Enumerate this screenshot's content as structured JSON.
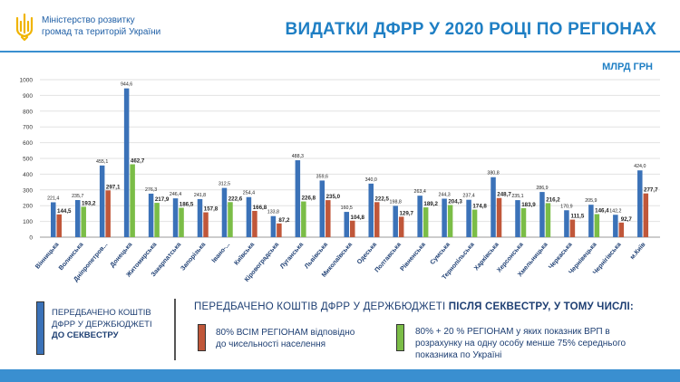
{
  "header": {
    "org_line1": "Міністерство розвитку",
    "org_line2": "громад та територій України",
    "title": "ВИДАТКИ ДФРР У 2020 РОЦІ ПО РЕГІОНАХ",
    "unit": "МЛРД ГРН"
  },
  "colors": {
    "blue": "#3b72b8",
    "orange": "#c0573a",
    "green": "#7bbd47",
    "accent": "#1f7fc4"
  },
  "legend": {
    "before_line1": "ПЕРЕДБАЧЕНО  КОШТІВ",
    "before_line2": "ДФРР У ДЕРЖБЮДЖЕТІ",
    "before_line3": "ДО СЕКВЕСТРУ",
    "after_title_plain": "ПЕРЕДБАЧЕНО  КОШТІВ ДФРР У ДЕРЖБЮДЖЕТІ ",
    "after_title_bold": "ПІСЛЯ СЕКВЕСТРУ, У ТОМУ ЧИСЛІ:",
    "orange_line1": "80% ВСІМ РЕГІОНАМ відповідно",
    "orange_line2": "до чисельності населення",
    "green_line1": "80% + 20 % РЕГІОНАМ у яких показник ВРП в",
    "green_line2": "розрахунку на одну особу менше 75% середнього",
    "green_line3": "показника по Україні"
  },
  "chart_data": {
    "type": "bar",
    "ylim": [
      0,
      1000
    ],
    "yticks": [
      0,
      100,
      200,
      300,
      400,
      500,
      600,
      700,
      800,
      900,
      1000
    ],
    "categories": [
      "Вінницька",
      "Волинська",
      "Дніпропетров...",
      "Донецька",
      "Житомирська",
      "Закарпатська",
      "Запорізька",
      "Івано-...",
      "Київська",
      "Кіровоградська",
      "Луганська",
      "Львівська",
      "Миколаївська",
      "Одеська",
      "Полтавська",
      "Рівненська",
      "Сумська",
      "Тернопільська",
      "Харківська",
      "Херсонська",
      "Хмельницька",
      "Черкаська",
      "Чернівецька",
      "Чернігівська",
      "м.Київ"
    ],
    "series": [
      {
        "name": "Передбачено коштів ДФРР у держбюджеті до секвестру",
        "color": "blue",
        "values": [
          221.4,
          235.7,
          455.1,
          944.6,
          276.3,
          246.4,
          241.8,
          312.5,
          254.4,
          133.8,
          488.3,
          359.6,
          160.5,
          340.0,
          198.8,
          263.4,
          244.3,
          237.4,
          380.8,
          235.1,
          286.9,
          170.9,
          205.9,
          142.2,
          424.0
        ],
        "labels": [
          "221,4",
          "235,7",
          "455,1",
          "944,6",
          "276,3",
          "246,4",
          "241,8",
          "312,5",
          "254,4",
          "133,8",
          "488,3",
          "359,6",
          "160,5",
          "340,0",
          "198,8",
          "263,4",
          "244,3",
          "237,4",
          "380,8",
          "235,1",
          "286,9",
          "170,9",
          "205,9",
          "142,2",
          "424,0"
        ]
      },
      {
        "name": "Після секвестру",
        "colors_per_bar": [
          "orange",
          "green",
          "orange",
          "green",
          "green",
          "green",
          "orange",
          "green",
          "orange",
          "orange",
          "green",
          "orange",
          "orange",
          "orange",
          "orange",
          "green",
          "green",
          "green",
          "orange",
          "green",
          "green",
          "orange",
          "green",
          "orange",
          "orange"
        ],
        "values": [
          144.5,
          193.2,
          297.1,
          462.7,
          217.9,
          186.5,
          157.8,
          222.6,
          166.8,
          87.2,
          226.8,
          235.0,
          104.8,
          222.5,
          129.7,
          189.2,
          204.3,
          174.8,
          248.7,
          183.9,
          216.2,
          111.5,
          146.4,
          92.7,
          277.7
        ],
        "labels": [
          "144,5",
          "193,2",
          "297,1",
          "462,7",
          "217,9",
          "186,5",
          "157,8",
          "222,6",
          "166,8",
          "87,2",
          "226,8",
          "235,0",
          "104,8",
          "222,5",
          "129,7",
          "189,2",
          "204,3",
          "174,8",
          "248,7",
          "183,9",
          "216,2",
          "111,5",
          "146,4",
          "92,7",
          "277,7"
        ]
      }
    ]
  }
}
